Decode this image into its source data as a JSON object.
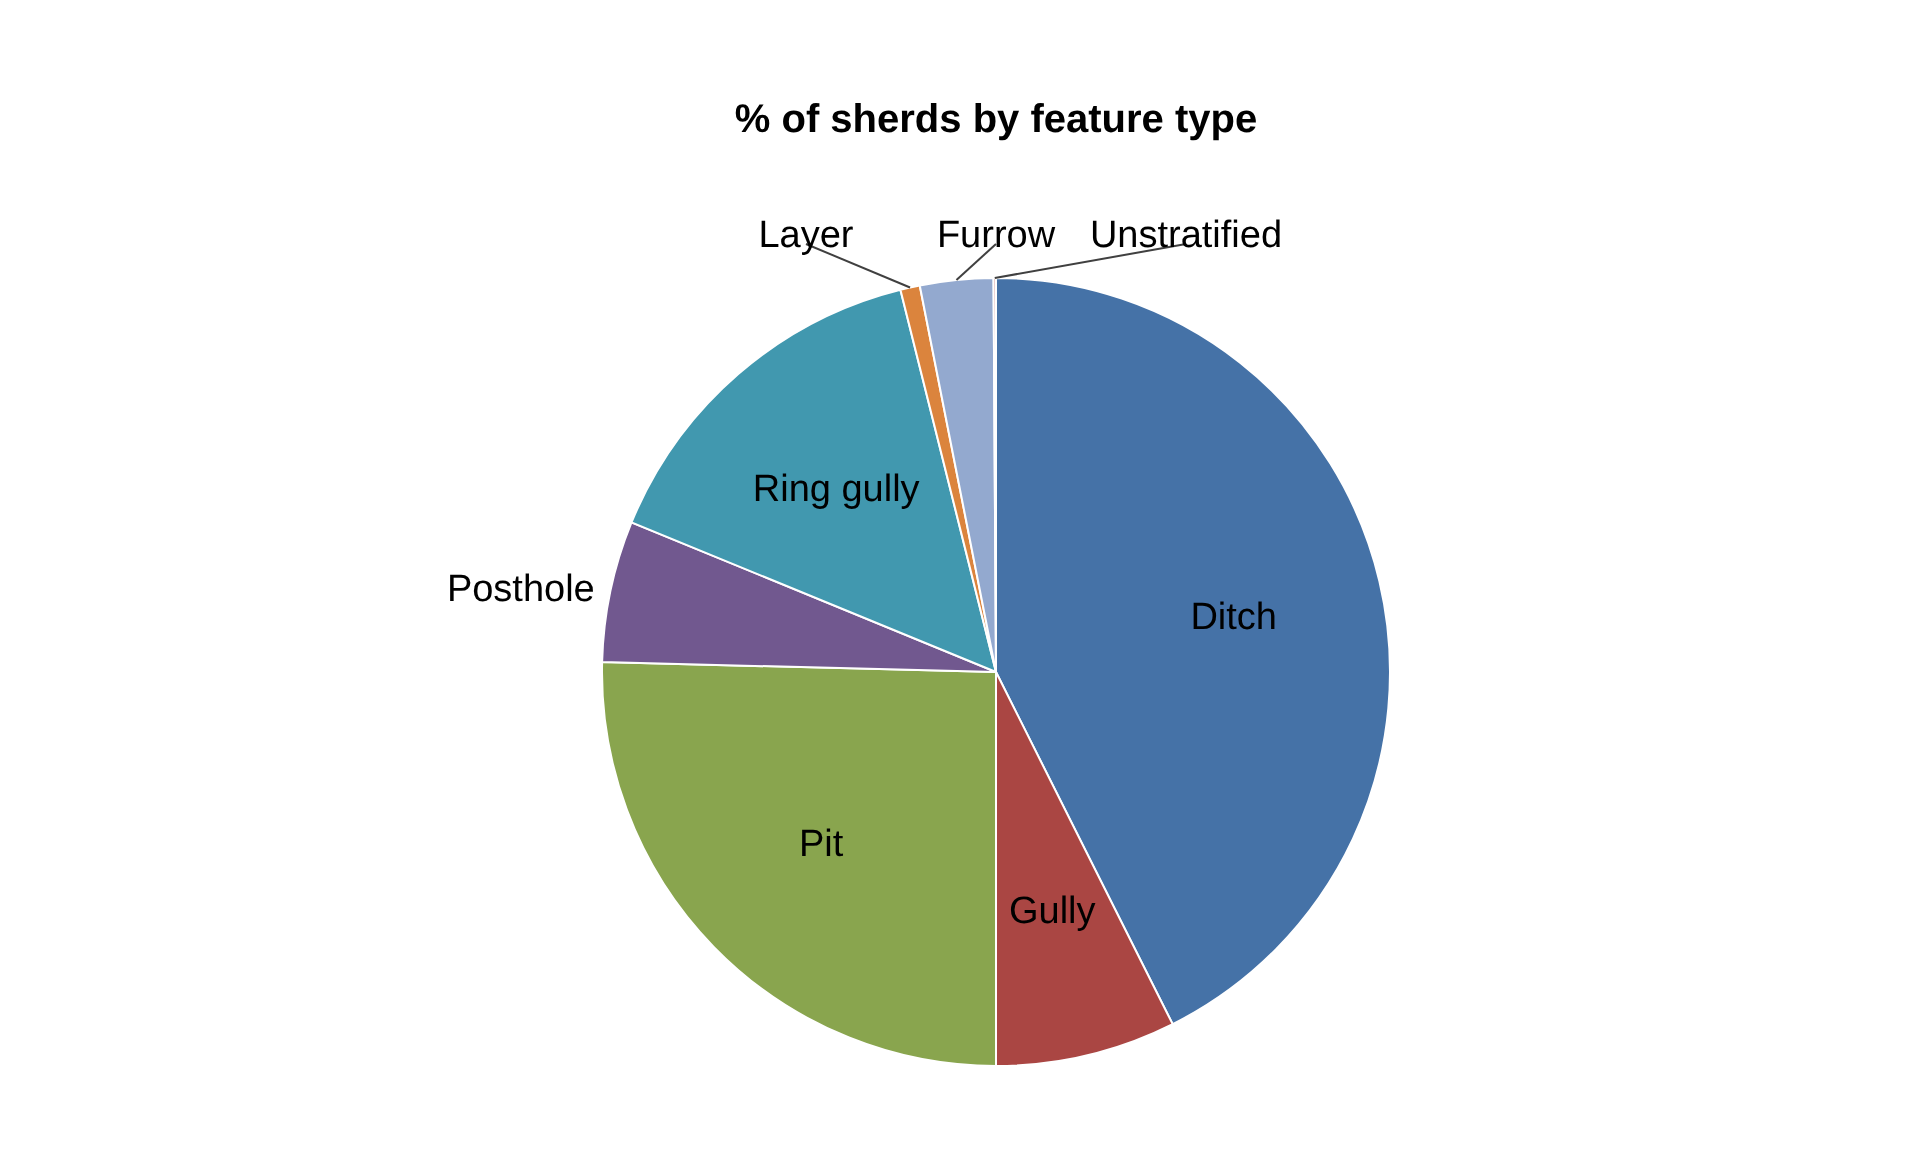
{
  "chart_data": {
    "type": "pie",
    "title": "% of sherds by feature type",
    "categories": [
      "Ditch",
      "Gully",
      "Pit",
      "Posthole",
      "Ring gully",
      "Layer",
      "Furrow",
      "Unstratified"
    ],
    "values": [
      42.6,
      7.4,
      25.4,
      5.8,
      14.9,
      0.8,
      3.0,
      0.1
    ],
    "colors": [
      "#4572a7",
      "#aa4643",
      "#89a54e",
      "#71588f",
      "#4198af",
      "#db843d",
      "#93a9cf",
      "#d19392"
    ],
    "legend": false
  }
}
